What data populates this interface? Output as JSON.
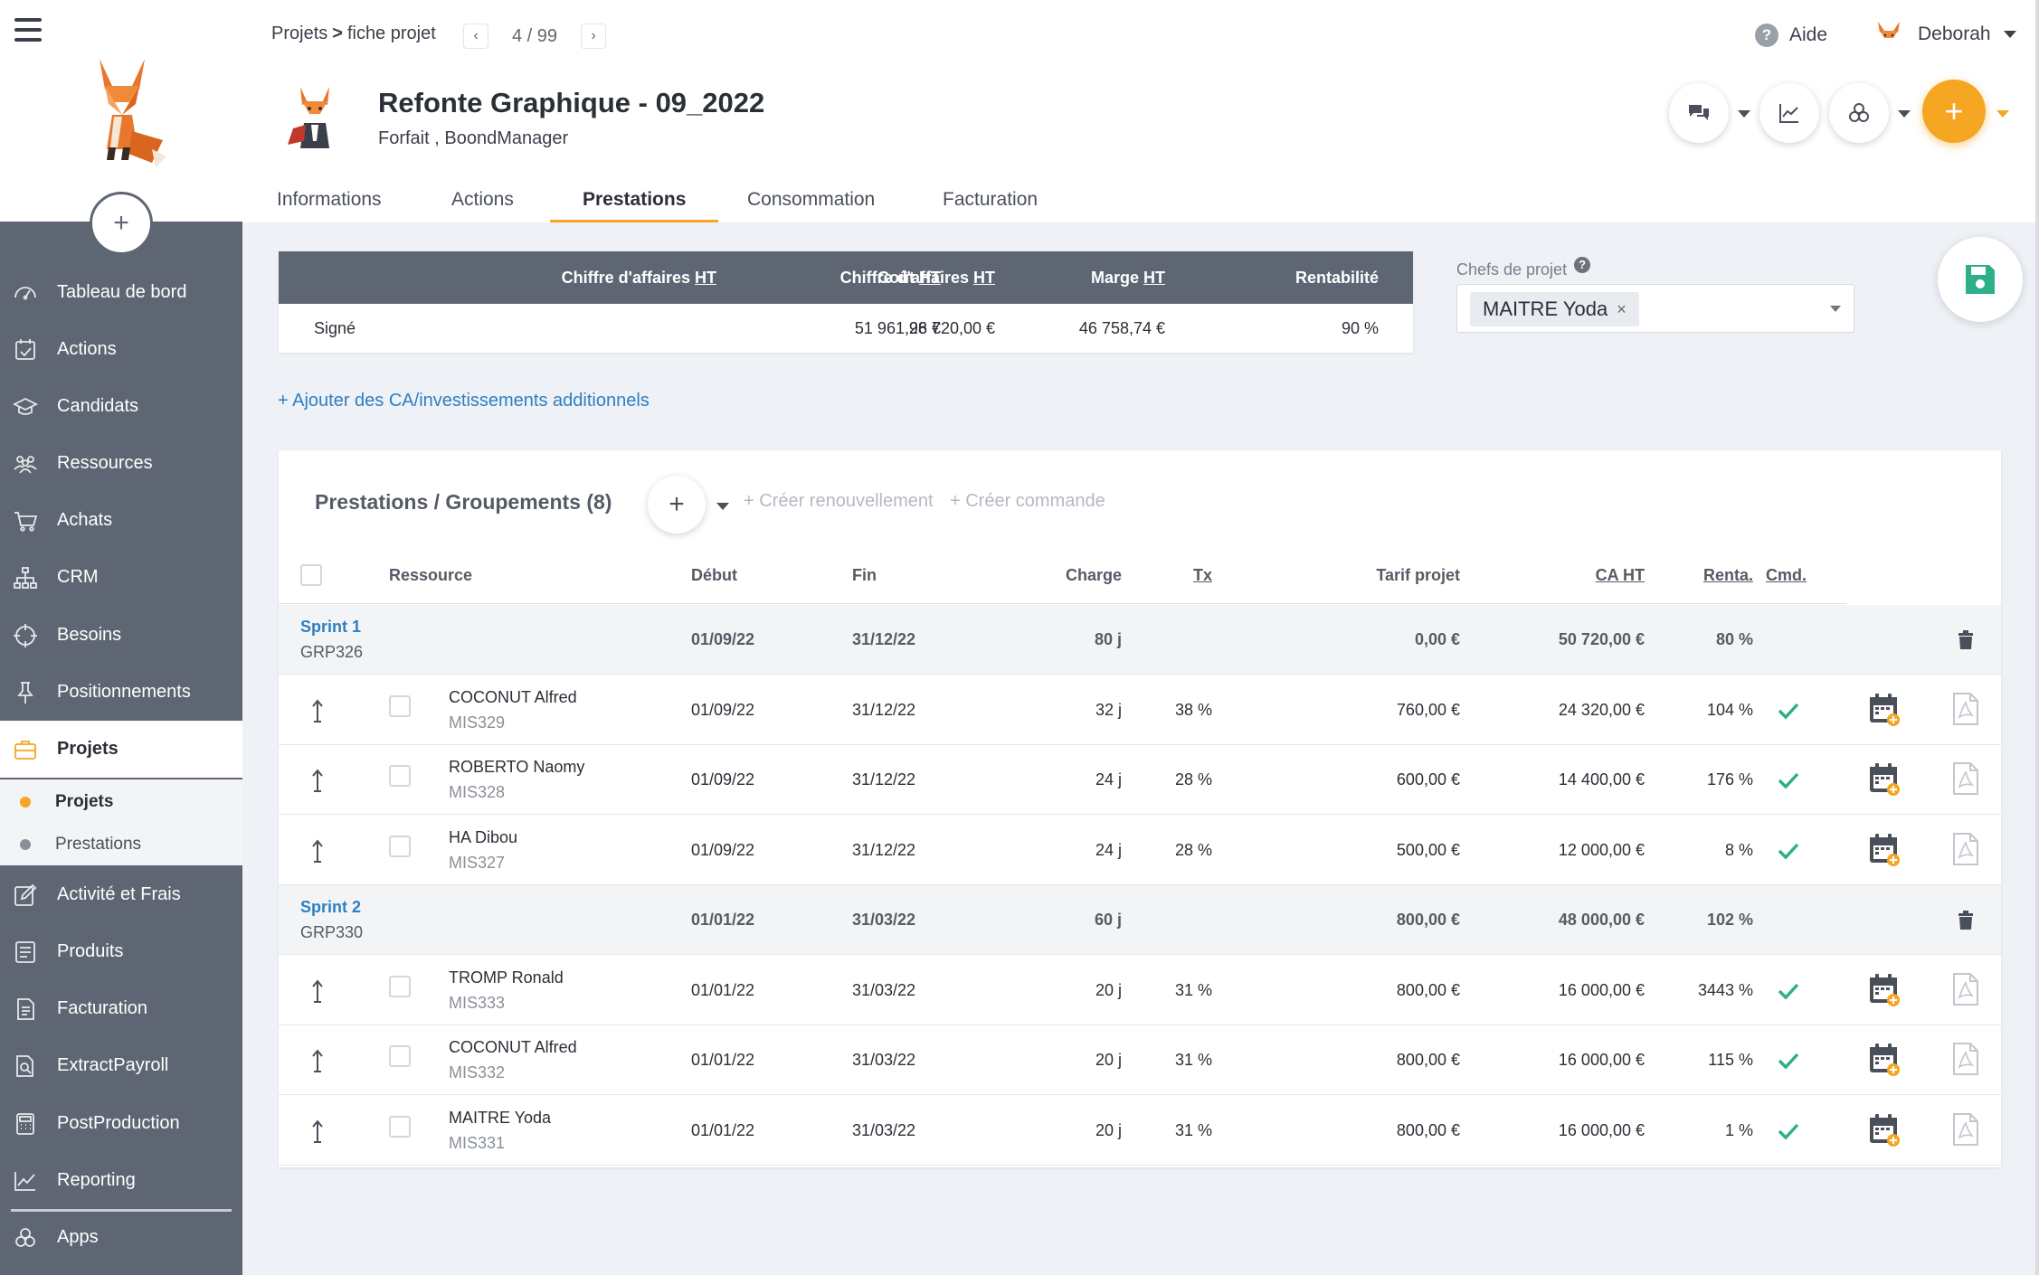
{
  "sidebar": {
    "items": [
      {
        "label": "Tableau de bord",
        "icon": "dashboard-icon"
      },
      {
        "label": "Actions",
        "icon": "actions-icon"
      },
      {
        "label": "Candidats",
        "icon": "graduation-cap-icon"
      },
      {
        "label": "Ressources",
        "icon": "people-icon"
      },
      {
        "label": "Achats",
        "icon": "cart-icon"
      },
      {
        "label": "CRM",
        "icon": "org-chart-icon"
      },
      {
        "label": "Besoins",
        "icon": "crosshair-icon"
      },
      {
        "label": "Positionnements",
        "icon": "pin-icon"
      },
      {
        "label": "Projets",
        "icon": "briefcase-icon",
        "active": true
      },
      {
        "label": "Activité et Frais",
        "icon": "edit-icon"
      },
      {
        "label": "Produits",
        "icon": "products-icon"
      },
      {
        "label": "Facturation",
        "icon": "invoice-icon"
      },
      {
        "label": "ExtractPayroll",
        "icon": "document-search-icon"
      },
      {
        "label": "PostProduction",
        "icon": "calculator-icon"
      },
      {
        "label": "Reporting",
        "icon": "chart-icon"
      },
      {
        "label": "Apps",
        "icon": "apps-icon"
      }
    ],
    "subitems": [
      {
        "label": "Projets",
        "active": true
      },
      {
        "label": "Prestations",
        "active": false
      }
    ]
  },
  "header": {
    "breadcrumb": {
      "parent": "Projets",
      "separator": ">",
      "current": "fiche projet"
    },
    "pager": {
      "text": "4 / 99"
    },
    "help_label": "Aide",
    "user_name": "Deborah",
    "project_title": "Refonte Graphique - 09_2022",
    "project_subtitle_type": "Forfait",
    "project_subtitle_client": "BoondManager",
    "tabs": [
      {
        "label": "Informations",
        "active": false
      },
      {
        "label": "Actions",
        "active": false
      },
      {
        "label": "Prestations",
        "active": true
      },
      {
        "label": "Consommation",
        "active": false
      },
      {
        "label": "Facturation",
        "active": false
      }
    ]
  },
  "summary": {
    "headers": {
      "ca": "Chiffre d'affaires",
      "cout": "Coût",
      "marge": "Marge",
      "renta": "Rentabilité",
      "ht": "HT"
    },
    "row": {
      "label": "Signé",
      "ca": "98 720,00 €",
      "cout": "51 961,26 €",
      "marge": "46 758,74 €",
      "renta": "90 %"
    }
  },
  "chefs": {
    "label": "Chefs de projet",
    "selected": "MAITRE Yoda"
  },
  "add_ca_link": "+ Ajouter des CA/investissements additionnels",
  "prestations": {
    "title": "Prestations / Groupements (8)",
    "renew_link": "+ Créer renouvellement",
    "order_link": "+ Créer commande",
    "columns": {
      "ressource": "Ressource",
      "debut": "Début",
      "fin": "Fin",
      "charge": "Charge",
      "tx": "Tx",
      "tarif": "Tarif projet",
      "ca": "CA HT",
      "renta": "Renta.",
      "cmd": "Cmd."
    },
    "groups": [
      {
        "name": "Sprint 1",
        "code": "GRP326",
        "debut": "01/09/22",
        "fin": "31/12/22",
        "charge": "80 j",
        "tarif": "0,00 €",
        "ca": "50 720,00 €",
        "renta": "80 %",
        "rows": [
          {
            "name": "COCONUT Alfred",
            "code": "MIS329",
            "debut": "01/09/22",
            "fin": "31/12/22",
            "charge": "32 j",
            "tx": "38 %",
            "tarif": "760,00 €",
            "ca": "24 320,00 €",
            "renta": "104 %"
          },
          {
            "name": "ROBERTO Naomy",
            "code": "MIS328",
            "debut": "01/09/22",
            "fin": "31/12/22",
            "charge": "24 j",
            "tx": "28 %",
            "tarif": "600,00 €",
            "ca": "14 400,00 €",
            "renta": "176 %"
          },
          {
            "name": "HA Dibou",
            "code": "MIS327",
            "debut": "01/09/22",
            "fin": "31/12/22",
            "charge": "24 j",
            "tx": "28 %",
            "tarif": "500,00 €",
            "ca": "12 000,00 €",
            "renta": "8 %"
          }
        ]
      },
      {
        "name": "Sprint 2",
        "code": "GRP330",
        "debut": "01/01/22",
        "fin": "31/03/22",
        "charge": "60 j",
        "tarif": "800,00 €",
        "ca": "48 000,00 €",
        "renta": "102 %",
        "rows": [
          {
            "name": "TROMP Ronald",
            "code": "MIS333",
            "debut": "01/01/22",
            "fin": "31/03/22",
            "charge": "20 j",
            "tx": "31 %",
            "tarif": "800,00 €",
            "ca": "16 000,00 €",
            "renta": "3443 %"
          },
          {
            "name": "COCONUT Alfred",
            "code": "MIS332",
            "debut": "01/01/22",
            "fin": "31/03/22",
            "charge": "20 j",
            "tx": "31 %",
            "tarif": "800,00 €",
            "ca": "16 000,00 €",
            "renta": "115 %"
          },
          {
            "name": "MAITRE Yoda",
            "code": "MIS331",
            "debut": "01/01/22",
            "fin": "31/03/22",
            "charge": "20 j",
            "tx": "31 %",
            "tarif": "800,00 €",
            "ca": "16 000,00 €",
            "renta": "1 %"
          }
        ]
      }
    ]
  },
  "colors": {
    "sidebar": "#5e6673",
    "accent": "#f5a623",
    "link": "#2f7fc1",
    "check": "#2fae8a",
    "save": "#2fae8a"
  }
}
